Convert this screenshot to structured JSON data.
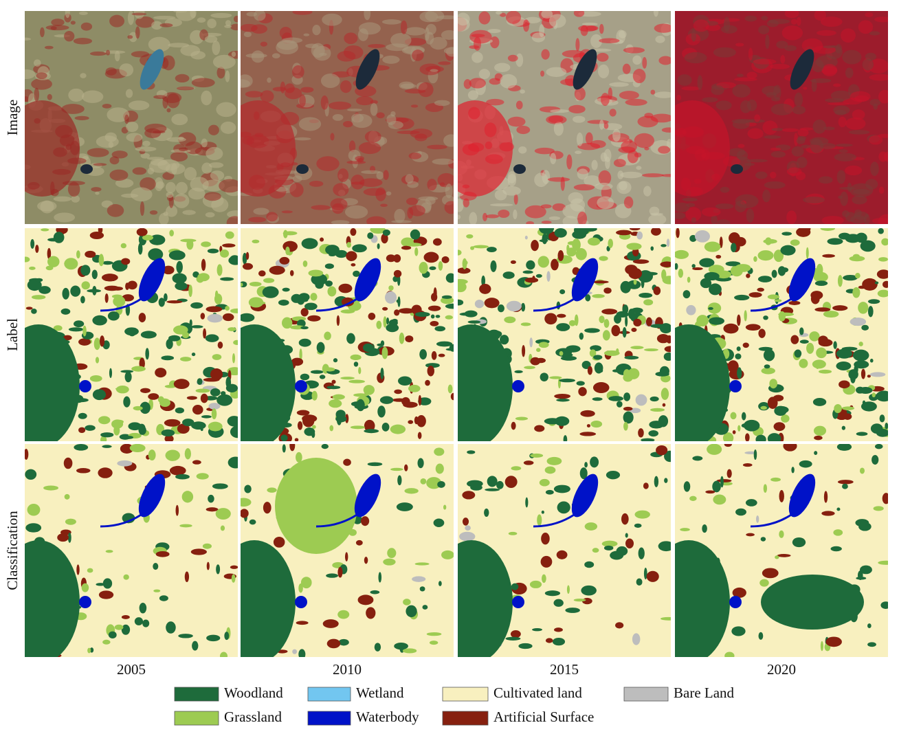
{
  "row_labels": [
    "Image",
    "Label",
    "Classification"
  ],
  "column_labels": [
    "2005",
    "2010",
    "2015",
    "2020"
  ],
  "legend": [
    {
      "label": "Woodland",
      "color": "#1e6b3b"
    },
    {
      "label": "Wetland",
      "color": "#72c6f0"
    },
    {
      "label": "Cultivated land",
      "color": "#f8f0bf"
    },
    {
      "label": "Bare Land",
      "color": "#bdbdbd"
    },
    {
      "label": "Grassland",
      "color": "#9dcb52"
    },
    {
      "label": "Waterbody",
      "color": "#0012c8"
    },
    {
      "label": "Artificial Surface",
      "color": "#86200f"
    }
  ]
}
